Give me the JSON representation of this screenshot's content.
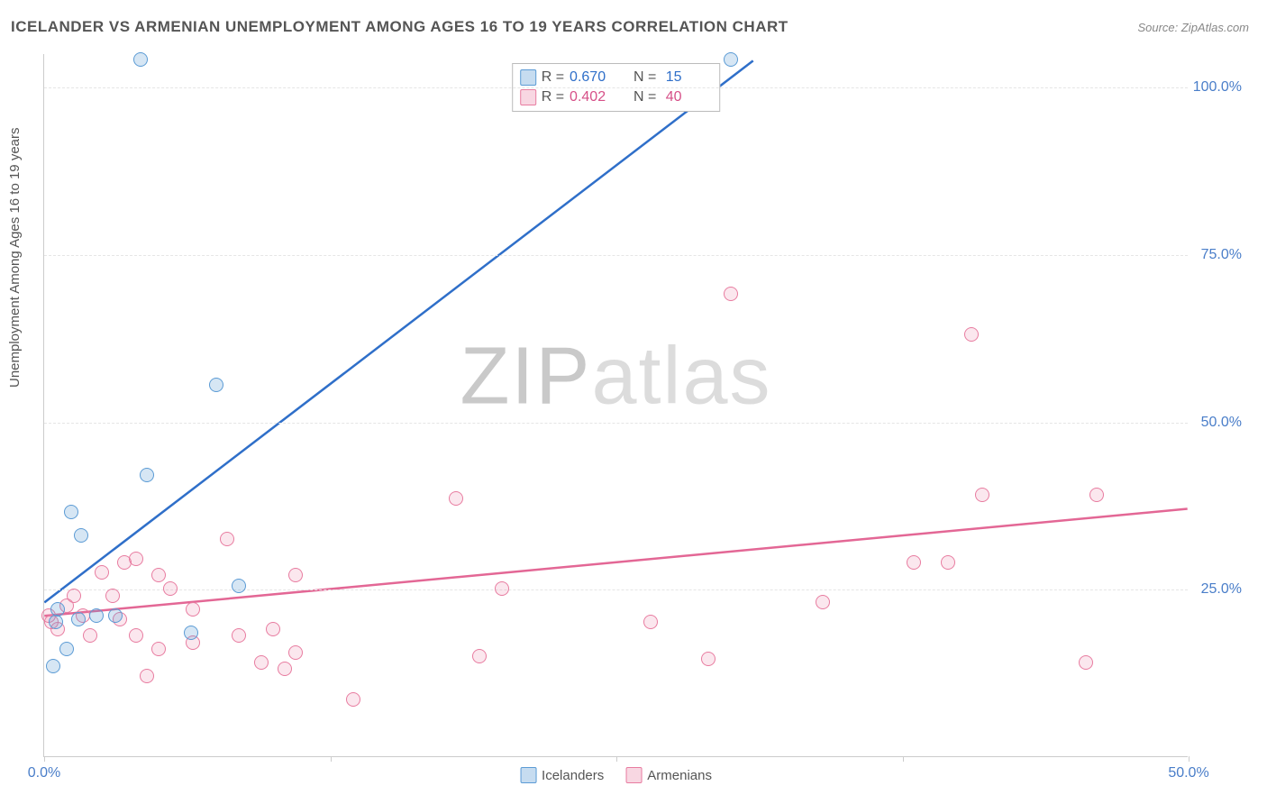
{
  "header": {
    "title": "ICELANDER VS ARMENIAN UNEMPLOYMENT AMONG AGES 16 TO 19 YEARS CORRELATION CHART",
    "source": "Source: ZipAtlas.com"
  },
  "chart": {
    "type": "scatter",
    "yaxis_title": "Unemployment Among Ages 16 to 19 years",
    "xlim": [
      0,
      50
    ],
    "ylim": [
      0,
      105
    ],
    "xtick_positions": [
      0,
      12.5,
      25,
      37.5,
      50
    ],
    "xtick_labels": {
      "0": "0.0%",
      "50": "50.0%"
    },
    "ytick_positions": [
      25,
      50,
      75,
      100
    ],
    "ytick_labels": {
      "25": "25.0%",
      "50": "50.0%",
      "75": "75.0%",
      "100": "100.0%"
    },
    "grid_color": "#e5e5e5",
    "axis_color": "#cccccc",
    "label_color": "#4a7ec9",
    "background_color": "#ffffff",
    "marker_radius": 8,
    "series": [
      {
        "name": "Icelanders",
        "color_stroke": "#5b9bd5",
        "color_fill": "rgba(91,155,213,0.25)",
        "trend_color": "#2f6fc9",
        "trend_width": 2.5,
        "trend_start": [
          0,
          23
        ],
        "trend_end": [
          31,
          104
        ],
        "R": "0.670",
        "N": "15",
        "points": [
          [
            4.2,
            104
          ],
          [
            30,
            104
          ],
          [
            7.5,
            55.5
          ],
          [
            4.5,
            42
          ],
          [
            1.2,
            36.5
          ],
          [
            1.6,
            33
          ],
          [
            8.5,
            25.5
          ],
          [
            0.6,
            22
          ],
          [
            1.5,
            20.5
          ],
          [
            2.3,
            21
          ],
          [
            3.1,
            21
          ],
          [
            6.4,
            18.5
          ],
          [
            0.5,
            20
          ],
          [
            0.4,
            13.5
          ],
          [
            1.0,
            16
          ]
        ]
      },
      {
        "name": "Armenians",
        "color_stroke": "#e87ca0",
        "color_fill": "rgba(232,124,160,0.18)",
        "trend_color": "#e36795",
        "trend_width": 2.5,
        "trend_start": [
          0,
          21
        ],
        "trend_end": [
          50,
          37
        ],
        "R": "0.402",
        "N": "40",
        "points": [
          [
            30,
            69
          ],
          [
            40.5,
            63
          ],
          [
            41,
            39
          ],
          [
            46,
            39
          ],
          [
            38,
            29
          ],
          [
            39.5,
            29
          ],
          [
            34,
            23
          ],
          [
            45.5,
            14
          ],
          [
            26.5,
            20
          ],
          [
            29,
            14.5
          ],
          [
            19,
            15
          ],
          [
            20,
            25
          ],
          [
            18,
            38.5
          ],
          [
            13.5,
            8.5
          ],
          [
            11,
            27
          ],
          [
            10.5,
            13
          ],
          [
            9.5,
            14
          ],
          [
            8,
            32.5
          ],
          [
            8.5,
            18
          ],
          [
            10,
            19
          ],
          [
            6.5,
            22
          ],
          [
            5.5,
            25
          ],
          [
            5,
            27
          ],
          [
            4,
            29.5
          ],
          [
            3.5,
            29
          ],
          [
            3,
            24
          ],
          [
            2.5,
            27.5
          ],
          [
            1.3,
            24
          ],
          [
            1.0,
            22.5
          ],
          [
            0.3,
            20
          ],
          [
            0.6,
            19
          ],
          [
            0.2,
            21
          ],
          [
            4.5,
            12
          ],
          [
            4,
            18
          ],
          [
            5,
            16
          ],
          [
            6.5,
            17
          ],
          [
            3.3,
            20.5
          ],
          [
            2.0,
            18
          ],
          [
            11,
            15.5
          ],
          [
            1.7,
            21
          ]
        ]
      }
    ],
    "legend_top": [
      {
        "swatch": "blue",
        "R": "0.670",
        "N": "15",
        "val_class": "val-blue"
      },
      {
        "swatch": "pink",
        "R": "0.402",
        "N": "40",
        "val_class": "val-pink"
      }
    ],
    "legend_bottom": [
      {
        "swatch": "blue",
        "label": "Icelanders"
      },
      {
        "swatch": "pink",
        "label": "Armenians"
      }
    ],
    "watermark": {
      "z": "ZIP",
      "rest": "atlas"
    }
  }
}
